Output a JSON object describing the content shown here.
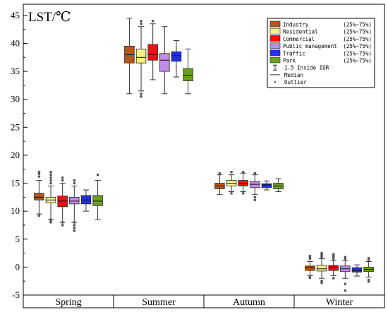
{
  "chart_data": {
    "type": "box",
    "ylabel": "LST/℃",
    "ylim": [
      -5,
      47
    ],
    "yticks": [
      -5,
      0,
      5,
      10,
      15,
      20,
      25,
      30,
      35,
      40,
      45
    ],
    "categories": [
      "Spring",
      "Summer",
      "Autumn",
      "Winter"
    ],
    "legend_position": "top-right",
    "series": [
      {
        "name": "Industry",
        "range_label": "(25%~75%)",
        "color": "#b3571a",
        "boxes": [
          {
            "category": "Spring",
            "whisker_low": 9.5,
            "q1": 12.0,
            "median": 12.5,
            "q3": 13.2,
            "whisker_high": 15.5,
            "outliers": [
              9.2,
              16.2,
              16.7,
              17.0
            ]
          },
          {
            "category": "Summer",
            "whisker_low": 31.0,
            "q1": 36.5,
            "median": 38.0,
            "q3": 39.5,
            "whisker_high": 44.5,
            "outliers": []
          },
          {
            "category": "Autumn",
            "whisker_low": 13.0,
            "q1": 14.0,
            "median": 14.5,
            "q3": 15.0,
            "whisker_high": 16.5,
            "outliers": [
              16.8
            ]
          },
          {
            "category": "Winter",
            "whisker_low": -1.5,
            "q1": -0.6,
            "median": -0.1,
            "q3": 0.2,
            "whisker_high": 1.0,
            "outliers": [
              -1.8,
              -1.9,
              1.5,
              1.8,
              2.0
            ]
          }
        ]
      },
      {
        "name": "Residential",
        "range_label": "(25%~75%)",
        "color": "#f7f08c",
        "boxes": [
          {
            "category": "Spring",
            "whisker_low": 8.5,
            "q1": 11.5,
            "median": 12.0,
            "q3": 12.5,
            "whisker_high": 14.5,
            "outliers": [
              8.0,
              8.2,
              8.5,
              15.0,
              15.5,
              16.0,
              16.5,
              17.0
            ]
          },
          {
            "category": "Summer",
            "whisker_low": 31.5,
            "q1": 36.5,
            "median": 37.5,
            "q3": 39.0,
            "whisker_high": 43.0,
            "outliers": [
              30.5,
              31.0,
              43.5,
              44.0
            ]
          },
          {
            "category": "Autumn",
            "whisker_low": 13.5,
            "q1": 14.5,
            "median": 15.0,
            "q3": 15.5,
            "whisker_high": 16.5,
            "outliers": [
              13.2,
              17.0
            ]
          },
          {
            "category": "Winter",
            "whisker_low": -2.0,
            "q1": -0.7,
            "median": -0.3,
            "q3": 0.3,
            "whisker_high": 1.5,
            "outliers": [
              -2.5,
              -2.8,
              1.8,
              2.0,
              2.2,
              2.5
            ]
          }
        ]
      },
      {
        "name": "Commercial",
        "range_label": "(25%~75%)",
        "color": "#ee1111",
        "boxes": [
          {
            "category": "Spring",
            "whisker_low": 8.0,
            "q1": 10.8,
            "median": 11.8,
            "q3": 12.7,
            "whisker_high": 15.0,
            "outliers": [
              7.5,
              8.0,
              15.5,
              16.0
            ]
          },
          {
            "category": "Summer",
            "whisker_low": 33.5,
            "q1": 37.0,
            "median": 38.0,
            "q3": 39.8,
            "whisker_high": 43.5,
            "outliers": [
              44.0
            ]
          },
          {
            "category": "Autumn",
            "whisker_low": 13.5,
            "q1": 14.5,
            "median": 15.0,
            "q3": 15.5,
            "whisker_high": 16.8,
            "outliers": [
              13.2,
              17.0
            ]
          },
          {
            "category": "Winter",
            "whisker_low": -1.5,
            "q1": -0.6,
            "median": 0.0,
            "q3": 0.3,
            "whisker_high": 1.2,
            "outliers": [
              -2.0,
              1.5,
              1.8,
              2.0,
              2.3
            ]
          }
        ]
      },
      {
        "name": "Public management",
        "range_label": "(25%~75%)",
        "color": "#c08ce8",
        "boxes": [
          {
            "category": "Spring",
            "whisker_low": 8.0,
            "q1": 11.3,
            "median": 11.8,
            "q3": 12.5,
            "whisker_high": 14.5,
            "outliers": [
              6.5,
              7.0,
              7.5,
              8.0,
              15.0,
              15.5
            ]
          },
          {
            "category": "Summer",
            "whisker_low": 31.0,
            "q1": 35.0,
            "median": 37.0,
            "q3": 38.2,
            "whisker_high": 43.0,
            "outliers": []
          },
          {
            "category": "Autumn",
            "whisker_low": 13.0,
            "q1": 14.2,
            "median": 14.8,
            "q3": 15.3,
            "whisker_high": 16.5,
            "outliers": [
              12.5,
              12.0,
              16.8
            ]
          },
          {
            "category": "Winter",
            "whisker_low": -2.0,
            "q1": -0.8,
            "median": -0.3,
            "q3": 0.2,
            "whisker_high": 1.2,
            "outliers": [
              -3.0,
              -4.2,
              1.5,
              1.8
            ]
          }
        ]
      },
      {
        "name": "Traffic",
        "range_label": "(25%~75%)",
        "color": "#2233dd",
        "boxes": [
          {
            "category": "Spring",
            "whisker_low": 10.0,
            "q1": 11.3,
            "median": 12.0,
            "q3": 12.8,
            "whisker_high": 13.8,
            "outliers": []
          },
          {
            "category": "Summer",
            "whisker_low": 34.0,
            "q1": 36.8,
            "median": 37.8,
            "q3": 38.5,
            "whisker_high": 40.5,
            "outliers": []
          },
          {
            "category": "Autumn",
            "whisker_low": 13.8,
            "q1": 14.2,
            "median": 14.7,
            "q3": 14.9,
            "whisker_high": 15.4,
            "outliers": []
          },
          {
            "category": "Winter",
            "whisker_low": -1.6,
            "q1": -0.9,
            "median": -0.6,
            "q3": -0.1,
            "whisker_high": 0.4,
            "outliers": []
          }
        ]
      },
      {
        "name": "Park",
        "range_label": "(25%~75%)",
        "color": "#6aa022",
        "boxes": [
          {
            "category": "Spring",
            "whisker_low": 8.5,
            "q1": 11.0,
            "median": 11.8,
            "q3": 12.8,
            "whisker_high": 15.5,
            "outliers": [
              16.5
            ]
          },
          {
            "category": "Summer",
            "whisker_low": 31.0,
            "q1": 33.3,
            "median": 34.3,
            "q3": 35.5,
            "whisker_high": 39.0,
            "outliers": []
          },
          {
            "category": "Autumn",
            "whisker_low": 13.5,
            "q1": 14.0,
            "median": 14.5,
            "q3": 15.0,
            "whisker_high": 15.8,
            "outliers": []
          },
          {
            "category": "Winter",
            "whisker_low": -1.8,
            "q1": -0.8,
            "median": -0.4,
            "q3": 0.0,
            "whisker_high": 1.0,
            "outliers": [
              -2.3,
              -2.6,
              1.3,
              1.6
            ]
          }
        ]
      }
    ],
    "legend_extra": [
      {
        "key": "iqr",
        "label": "1.5 Inside IQR"
      },
      {
        "key": "median",
        "label": "Median"
      },
      {
        "key": "outlier",
        "label": "Outlier"
      }
    ]
  }
}
